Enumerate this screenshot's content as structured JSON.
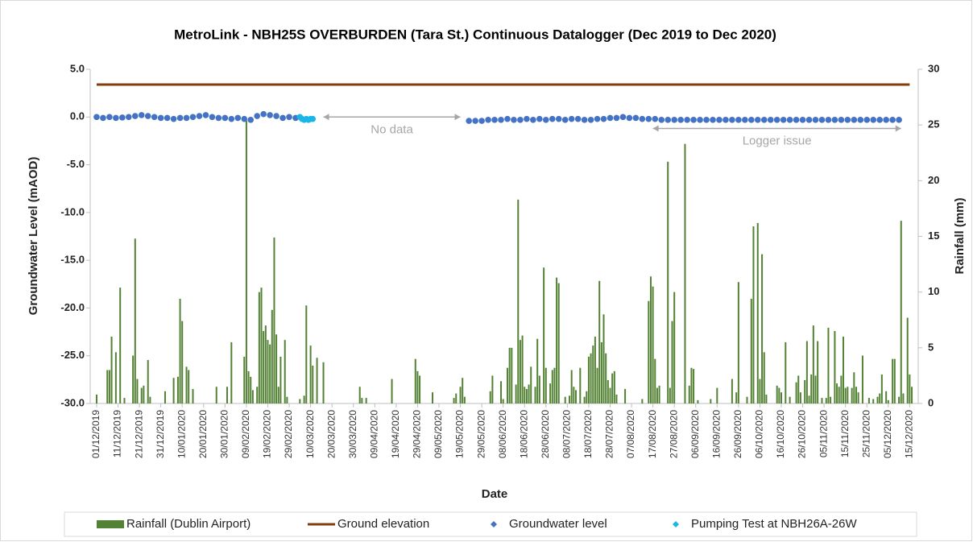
{
  "chart_data": {
    "type": "combo",
    "title": "MetroLink - NBH25S OVERBURDEN (Tara St.) Continuous Datalogger (Dec 2019 to Dec 2020)",
    "xlabel": "Date",
    "ylabel": "Groundwater Level (mAOD)",
    "y2label": "Rainfall (mm)",
    "xlim": [
      "28/11/2019",
      "19/12/2020"
    ],
    "xticks": [
      "01/12/2019",
      "11/12/2019",
      "21/12/2019",
      "31/12/2019",
      "10/01/2020",
      "20/01/2020",
      "30/01/2020",
      "09/02/2020",
      "19/02/2020",
      "29/02/2020",
      "10/03/2020",
      "20/03/2020",
      "30/03/2020",
      "09/04/2020",
      "19/04/2020",
      "29/04/2020",
      "09/05/2020",
      "19/05/2020",
      "29/05/2020",
      "08/06/2020",
      "18/06/2020",
      "28/06/2020",
      "08/07/2020",
      "18/07/2020",
      "28/07/2020",
      "07/08/2020",
      "17/08/2020",
      "27/08/2020",
      "06/09/2020",
      "16/09/2020",
      "26/09/2020",
      "06/10/2020",
      "16/10/2020",
      "26/10/2020",
      "05/11/2020",
      "15/11/2020",
      "25/11/2020",
      "05/12/2020",
      "15/12/2020"
    ],
    "ylim": [
      -30,
      5
    ],
    "yticks": [
      {
        "value": 5,
        "label": "5.0"
      },
      {
        "value": 0,
        "label": "0.0"
      },
      {
        "value": -5,
        "label": "-5.0"
      },
      {
        "value": -10,
        "label": "-10.0"
      },
      {
        "value": -15,
        "label": "-15.0"
      },
      {
        "value": -20,
        "label": "-20.0"
      },
      {
        "value": -25,
        "label": "-25.0"
      },
      {
        "value": -30,
        "label": "-30.0"
      }
    ],
    "y2lim": [
      0,
      30
    ],
    "y2ticks": [
      0,
      5,
      10,
      15,
      20,
      25,
      30
    ],
    "series": [
      {
        "name": "Rainfall (Dublin Airport)",
        "type": "bar",
        "axis": "y2",
        "color": "#548235",
        "x": [
          "01/12/2019",
          "06/12/2019",
          "07/12/2019",
          "08/12/2019",
          "10/12/2019",
          "12/12/2019",
          "14/12/2019",
          "18/12/2019",
          "19/12/2019",
          "20/12/2019",
          "22/12/2019",
          "23/12/2019",
          "25/12/2019",
          "26/12/2019",
          "02/01/2020",
          "06/01/2020",
          "08/01/2020",
          "09/01/2020",
          "10/01/2020",
          "12/01/2020",
          "13/01/2020",
          "15/01/2020",
          "26/01/2020",
          "31/01/2020",
          "02/02/2020",
          "08/02/2020",
          "09/02/2020",
          "10/02/2020",
          "11/02/2020",
          "12/02/2020",
          "14/02/2020",
          "15/02/2020",
          "16/02/2020",
          "17/02/2020",
          "18/02/2020",
          "19/02/2020",
          "20/02/2020",
          "21/02/2020",
          "22/02/2020",
          "23/02/2020",
          "24/02/2020",
          "25/02/2020",
          "27/02/2020",
          "28/02/2020",
          "05/03/2020",
          "07/03/2020",
          "08/03/2020",
          "10/03/2020",
          "11/03/2020",
          "13/03/2020",
          "16/03/2020",
          "02/04/2020",
          "03/04/2020",
          "05/04/2020",
          "17/04/2020",
          "28/04/2020",
          "29/04/2020",
          "30/04/2020",
          "06/05/2020",
          "16/05/2020",
          "17/05/2020",
          "19/05/2020",
          "20/05/2020",
          "21/05/2020",
          "02/06/2020",
          "03/06/2020",
          "07/06/2020",
          "08/06/2020",
          "10/06/2020",
          "11/06/2020",
          "12/06/2020",
          "14/06/2020",
          "15/06/2020",
          "16/06/2020",
          "17/06/2020",
          "18/06/2020",
          "19/06/2020",
          "20/06/2020",
          "21/06/2020",
          "23/06/2020",
          "24/06/2020",
          "25/06/2020",
          "27/06/2020",
          "28/06/2020",
          "30/06/2020",
          "01/07/2020",
          "02/07/2020",
          "03/07/2020",
          "04/07/2020",
          "07/07/2020",
          "09/07/2020",
          "10/07/2020",
          "11/07/2020",
          "12/07/2020",
          "14/07/2020",
          "16/07/2020",
          "17/07/2020",
          "18/07/2020",
          "19/07/2020",
          "20/07/2020",
          "21/07/2020",
          "22/07/2020",
          "23/07/2020",
          "24/07/2020",
          "25/07/2020",
          "26/07/2020",
          "27/07/2020",
          "28/07/2020",
          "29/07/2020",
          "30/07/2020",
          "31/07/2020",
          "04/08/2020",
          "12/08/2020",
          "15/08/2020",
          "16/08/2020",
          "17/08/2020",
          "18/08/2020",
          "19/08/2020",
          "20/08/2020",
          "24/08/2020",
          "25/08/2020",
          "26/08/2020",
          "27/08/2020",
          "01/09/2020",
          "03/09/2020",
          "04/09/2020",
          "05/09/2020",
          "07/09/2020",
          "13/09/2020",
          "16/09/2020",
          "23/09/2020",
          "25/09/2020",
          "26/09/2020",
          "30/09/2020",
          "02/10/2020",
          "03/10/2020",
          "05/10/2020",
          "06/10/2020",
          "07/10/2020",
          "08/10/2020",
          "09/10/2020",
          "14/10/2020",
          "15/10/2020",
          "16/10/2020",
          "18/10/2020",
          "20/10/2020",
          "23/10/2020",
          "24/10/2020",
          "25/10/2020",
          "27/10/2020",
          "28/10/2020",
          "29/10/2020",
          "30/10/2020",
          "31/10/2020",
          "01/11/2020",
          "02/11/2020",
          "04/11/2020",
          "06/11/2020",
          "07/11/2020",
          "08/11/2020",
          "10/11/2020",
          "11/11/2020",
          "12/11/2020",
          "13/11/2020",
          "14/11/2020",
          "15/11/2020",
          "16/11/2020",
          "18/11/2020",
          "19/11/2020",
          "20/11/2020",
          "21/11/2020",
          "23/11/2020",
          "26/11/2020",
          "28/11/2020",
          "30/11/2020",
          "01/12/2020",
          "02/12/2020",
          "04/12/2020",
          "05/12/2020",
          "07/12/2020",
          "08/12/2020",
          "10/12/2020",
          "11/12/2020",
          "12/12/2020",
          "14/12/2020",
          "15/12/2020",
          "16/12/2020"
        ],
        "values": [
          0.8,
          3,
          3,
          6,
          4.6,
          10.4,
          0.5,
          4.3,
          14.8,
          2.2,
          1.4,
          1.6,
          3.9,
          0.6,
          1.1,
          2.3,
          2.4,
          9.4,
          7.4,
          3.3,
          3,
          1.3,
          1.5,
          1.5,
          5.5,
          4.2,
          25.4,
          2.9,
          2.4,
          1.2,
          1.5,
          10,
          10.4,
          6.5,
          7,
          5.7,
          5.3,
          8.4,
          14.9,
          6.2,
          1.5,
          4.2,
          5.7,
          0.6,
          0.4,
          0.7,
          8.8,
          5.2,
          3.4,
          4.1,
          3.7,
          1.5,
          0.5,
          0.5,
          2.2,
          4,
          2.9,
          2.5,
          1,
          0.5,
          0.9,
          1.5,
          2.3,
          0.6,
          1.1,
          2.5,
          2,
          0.4,
          3.2,
          5,
          5,
          1.7,
          18.3,
          5.7,
          6.1,
          1.5,
          1.3,
          1.7,
          3.3,
          1.5,
          5.8,
          2.5,
          12.2,
          3.2,
          1.8,
          3,
          3.2,
          11.3,
          10.8,
          0.6,
          0.7,
          3,
          1.5,
          1.2,
          3.2,
          0.6,
          1.1,
          4.2,
          4.5,
          5.2,
          6,
          3.2,
          11,
          5.5,
          8,
          4.5,
          2.1,
          1.4,
          2.7,
          2.9,
          0.8,
          1.3,
          0.4,
          9.2,
          11.4,
          10.5,
          4,
          1.4,
          1.6,
          21.7,
          1.4,
          7.4,
          10,
          23.3,
          1.6,
          3.2,
          3.1,
          0.3,
          0.4,
          1.4,
          2.2,
          1,
          10.9,
          0.6,
          9.4,
          15.9,
          16.2,
          2.2,
          13.4,
          4.6,
          0.8,
          1.6,
          1.4,
          1,
          5.5,
          0.6,
          1.9,
          2.5,
          1,
          2.1,
          5.6,
          0.7,
          2.6,
          7,
          2.5,
          5.6,
          0.5,
          0.5,
          6.8,
          0.6,
          6.5,
          1.8,
          1.5,
          2.5,
          6,
          1.4,
          1.5,
          1.4,
          2.8,
          1.5,
          1,
          4.3,
          0.5,
          0.4,
          0.6,
          0.9,
          2.6,
          1.1,
          0.3,
          4,
          4,
          0.6,
          16.4,
          0.9,
          7.7,
          2.6,
          1.5
        ]
      },
      {
        "name": "Ground elevation",
        "type": "line",
        "color": "#843c0c",
        "x": [
          "01/12/2019",
          "15/12/2020"
        ],
        "values": [
          3.4,
          3.4
        ]
      },
      {
        "name": "Groundwater level",
        "type": "scatter",
        "color": "#4472c4",
        "x": [
          "01/12/2019",
          "04/12/2019",
          "07/12/2019",
          "10/12/2019",
          "13/12/2019",
          "16/12/2019",
          "19/12/2019",
          "22/12/2019",
          "25/12/2019",
          "28/12/2019",
          "31/12/2019",
          "03/01/2020",
          "06/01/2020",
          "09/01/2020",
          "12/01/2020",
          "15/01/2020",
          "18/01/2020",
          "21/01/2020",
          "24/01/2020",
          "27/01/2020",
          "30/01/2020",
          "02/02/2020",
          "05/02/2020",
          "08/02/2020",
          "11/02/2020",
          "14/02/2020",
          "17/02/2020",
          "20/02/2020",
          "23/02/2020",
          "26/02/2020",
          "29/02/2020",
          "03/03/2020",
          "23/05/2020",
          "26/05/2020",
          "29/05/2020",
          "01/06/2020",
          "04/06/2020",
          "07/06/2020",
          "10/06/2020",
          "13/06/2020",
          "16/06/2020",
          "19/06/2020",
          "22/06/2020",
          "25/06/2020",
          "28/06/2020",
          "01/07/2020",
          "04/07/2020",
          "07/07/2020",
          "10/07/2020",
          "13/07/2020",
          "16/07/2020",
          "19/07/2020",
          "22/07/2020",
          "25/07/2020",
          "28/07/2020",
          "31/07/2020",
          "03/08/2020",
          "06/08/2020",
          "09/08/2020",
          "12/08/2020",
          "15/08/2020",
          "18/08/2020",
          "21/08/2020",
          "24/08/2020",
          "27/08/2020",
          "30/08/2020",
          "02/09/2020",
          "05/09/2020",
          "08/09/2020",
          "11/09/2020",
          "14/09/2020",
          "17/09/2020",
          "20/09/2020",
          "23/09/2020",
          "26/09/2020",
          "29/09/2020",
          "02/10/2020",
          "05/10/2020",
          "08/10/2020",
          "11/10/2020",
          "14/10/2020",
          "17/10/2020",
          "20/10/2020",
          "23/10/2020",
          "26/10/2020",
          "29/10/2020",
          "01/11/2020",
          "04/11/2020",
          "07/11/2020",
          "10/11/2020",
          "13/11/2020",
          "16/11/2020",
          "19/11/2020",
          "22/11/2020",
          "25/11/2020",
          "28/11/2020",
          "01/12/2020",
          "04/12/2020",
          "07/12/2020",
          "10/12/2020"
        ],
        "values": [
          0.0,
          -0.1,
          0.0,
          -0.1,
          -0.05,
          0.0,
          0.1,
          0.2,
          0.1,
          0.0,
          -0.1,
          -0.1,
          -0.2,
          -0.1,
          -0.1,
          0.0,
          0.1,
          0.2,
          0.0,
          -0.1,
          -0.1,
          -0.2,
          -0.1,
          -0.2,
          -0.3,
          0.1,
          0.3,
          0.2,
          0.1,
          -0.1,
          0.0,
          -0.1,
          -0.4,
          -0.4,
          -0.4,
          -0.3,
          -0.3,
          -0.3,
          -0.2,
          -0.3,
          -0.3,
          -0.2,
          -0.3,
          -0.2,
          -0.3,
          -0.2,
          -0.2,
          -0.3,
          -0.2,
          -0.2,
          -0.3,
          -0.3,
          -0.2,
          -0.2,
          -0.1,
          -0.1,
          0.0,
          -0.1,
          -0.1,
          -0.2,
          -0.2,
          -0.2,
          -0.3,
          -0.3,
          -0.3,
          -0.3,
          -0.3,
          -0.3,
          -0.3,
          -0.3,
          -0.3,
          -0.3,
          -0.3,
          -0.3,
          -0.3,
          -0.3,
          -0.3,
          -0.3,
          -0.3,
          -0.3,
          -0.3,
          -0.3,
          -0.3,
          -0.3,
          -0.3,
          -0.3,
          -0.3,
          -0.3,
          -0.3,
          -0.3,
          -0.3,
          -0.3,
          -0.3,
          -0.3,
          -0.3,
          -0.3,
          -0.3,
          -0.3,
          -0.3,
          -0.3
        ]
      },
      {
        "name": "Pumping Test at NBH26A-26W",
        "type": "scatter",
        "color": "#1cb5e8",
        "x": [
          "05/03/2020",
          "06/03/2020",
          "07/03/2020",
          "08/03/2020",
          "09/03/2020",
          "10/03/2020",
          "11/03/2020"
        ],
        "values": [
          0.0,
          -0.2,
          -0.3,
          -0.2,
          -0.3,
          -0.2,
          -0.2
        ]
      }
    ],
    "annotations": [
      {
        "text": "No data",
        "from": "16/03/2020",
        "to": "19/05/2020",
        "y": 0
      },
      {
        "text": "Logger issue",
        "from": "17/08/2020",
        "to": "11/12/2020",
        "y": -1.2
      }
    ]
  }
}
